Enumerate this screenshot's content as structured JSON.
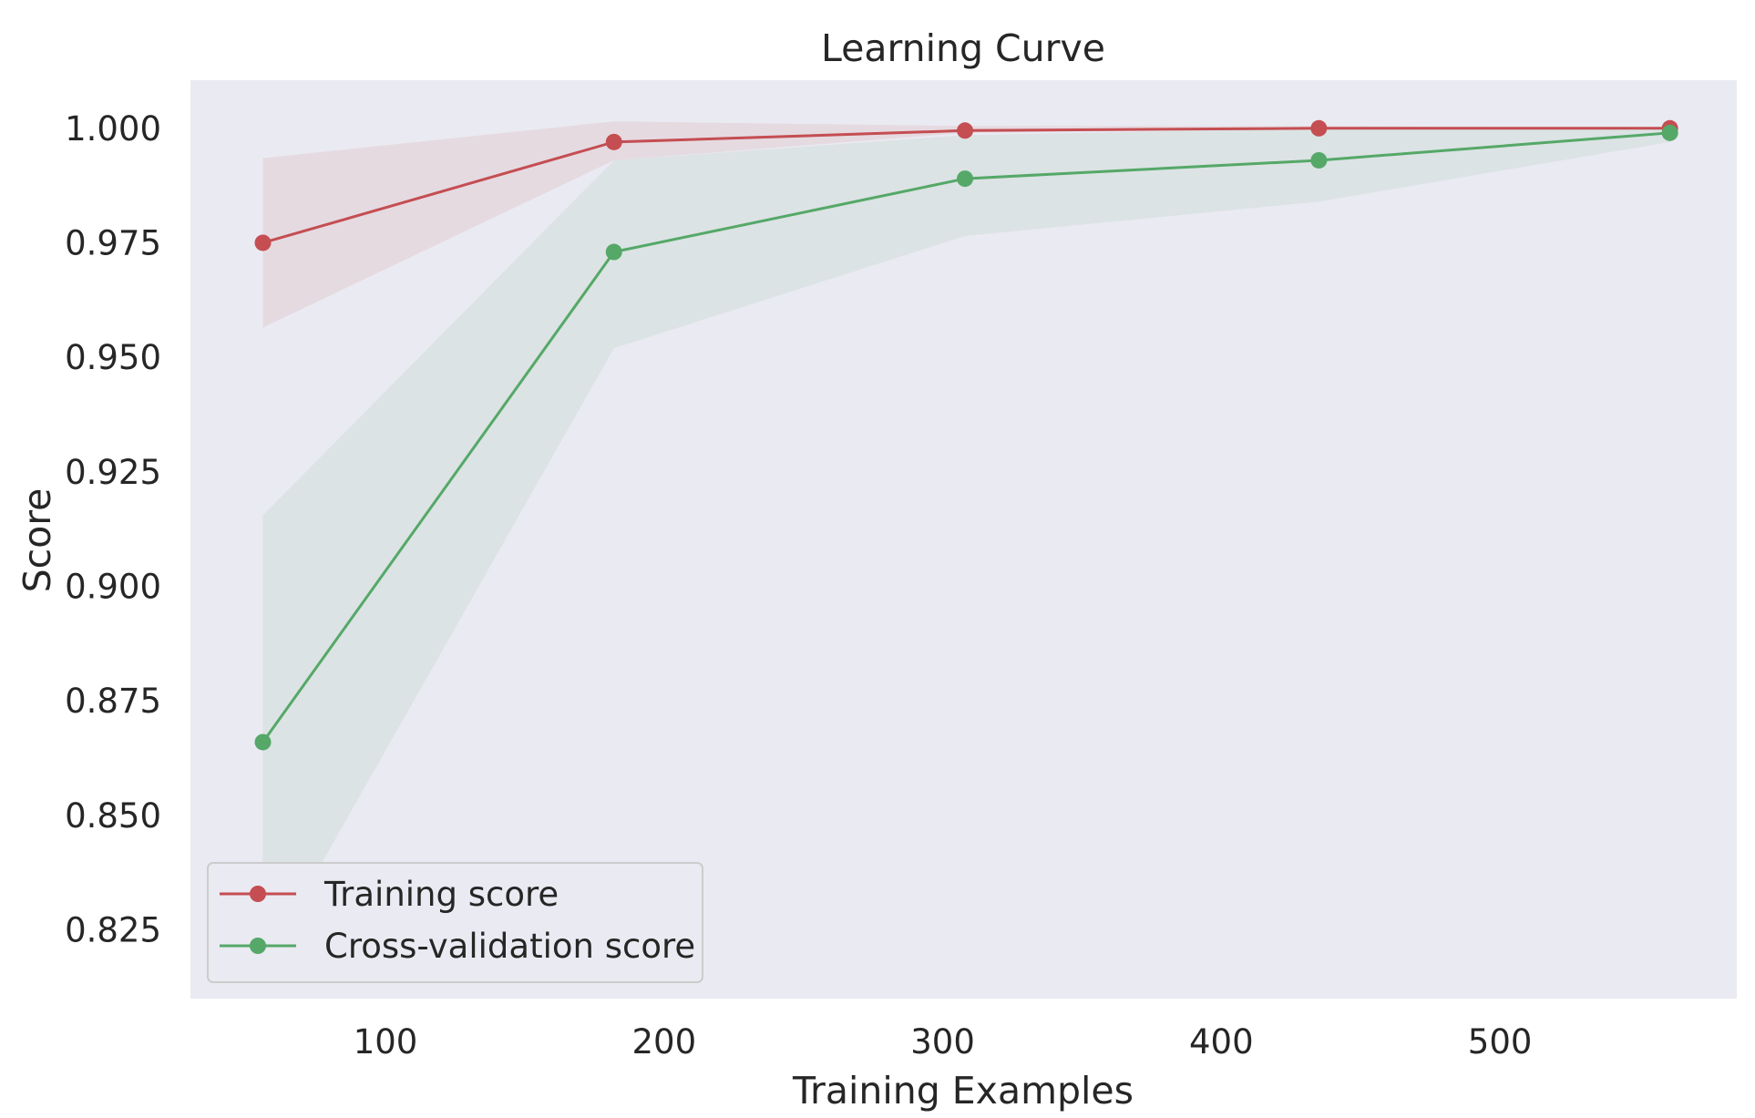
{
  "chart_data": {
    "type": "line",
    "title": "Learning Curve",
    "xlabel": "Training Examples",
    "ylabel": "Score",
    "xlim": [
      30,
      585
    ],
    "ylim": [
      0.81,
      1.0105
    ],
    "xticks": [
      100,
      200,
      300,
      400,
      500
    ],
    "xtick_labels": [
      "100",
      "200",
      "300",
      "400",
      "500"
    ],
    "yticks": [
      0.825,
      0.85,
      0.875,
      0.9,
      0.925,
      0.95,
      0.975,
      1.0
    ],
    "ytick_labels": [
      "0.825",
      "0.850",
      "0.875",
      "0.900",
      "0.925",
      "0.950",
      "0.975",
      "1.000"
    ],
    "grid": false,
    "legend_position": "lower-left",
    "x": [
      56,
      182,
      308,
      435,
      561
    ],
    "series": [
      {
        "name": "Training score",
        "color": "#c44e52",
        "values": [
          0.975,
          0.997,
          0.9995,
          1.0,
          1.0
        ],
        "band_lower": [
          0.9565,
          0.993,
          0.999,
          1.0,
          1.0
        ],
        "band_upper": [
          0.9935,
          1.0015,
          1.0005,
          1.0005,
          1.0
        ]
      },
      {
        "name": "Cross-validation score",
        "color": "#55a868",
        "values": [
          0.866,
          0.973,
          0.989,
          0.993,
          0.999
        ],
        "band_lower": [
          0.817,
          0.952,
          0.9765,
          0.984,
          0.997
        ],
        "band_upper": [
          0.9155,
          0.993,
          0.9985,
          1.0,
          1.0
        ]
      }
    ],
    "colors": {
      "plot_background": "#eaeaf2",
      "text": "#262626",
      "legend_border": "#cccccc"
    }
  }
}
